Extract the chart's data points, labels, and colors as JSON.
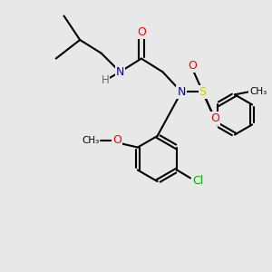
{
  "bg_color": "#e8e8e8",
  "atom_colors": {
    "N": "#0000cc",
    "O": "#ff0000",
    "S": "#cccc00",
    "Cl": "#00aa00",
    "H": "#507070",
    "C": "#000000"
  },
  "bond_color": "#000000",
  "line_width": 1.5,
  "fig_size": [
    3.0,
    3.0
  ],
  "dpi": 100
}
